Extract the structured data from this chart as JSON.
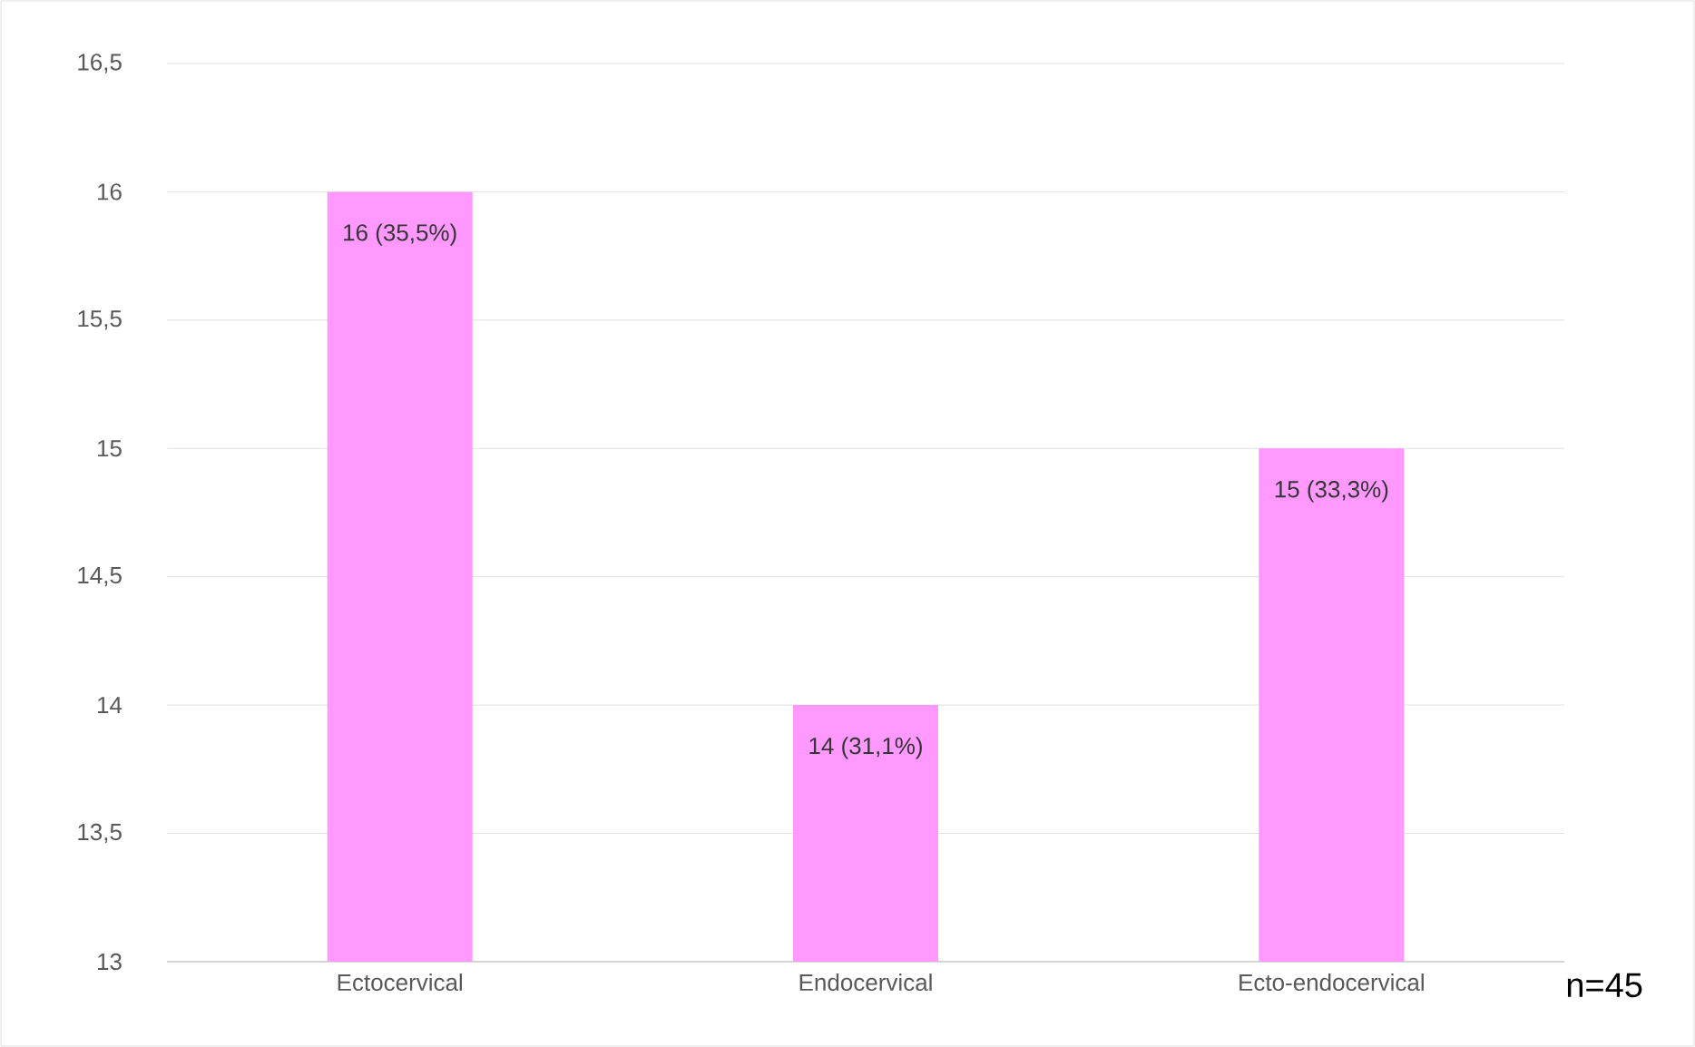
{
  "chart_data": {
    "type": "bar",
    "categories": [
      "Ectocervical",
      "Endocervical",
      "Ecto-endocervical"
    ],
    "values": [
      16,
      14,
      15
    ],
    "color": "#ff99ff",
    "value_labels": [
      "16 (35,5%)",
      "14 (31,1%)",
      "15 (33,3%)"
    ],
    "ylim": [
      13,
      16.5
    ],
    "yticks": [
      {
        "value": 13,
        "label": "13"
      },
      {
        "value": 13.5,
        "label": "13,5"
      },
      {
        "value": 14,
        "label": "14"
      },
      {
        "value": 14.5,
        "label": "14,5"
      },
      {
        "value": 15,
        "label": "15"
      },
      {
        "value": 15.5,
        "label": "15,5"
      },
      {
        "value": 16,
        "label": "16"
      },
      {
        "value": 16.5,
        "label": "16,5"
      }
    ],
    "grid": "y",
    "annotations": [
      "n=45"
    ]
  }
}
